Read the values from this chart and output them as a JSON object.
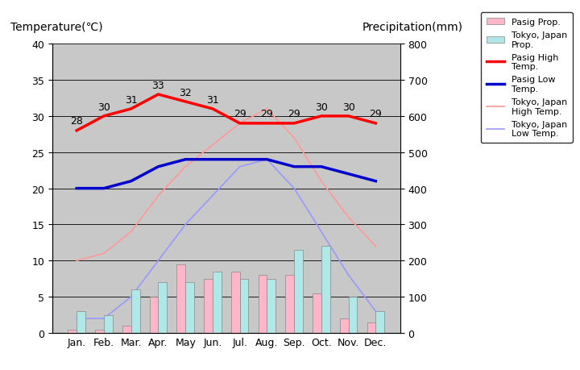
{
  "months": [
    "Jan.",
    "Feb.",
    "Mar.",
    "Apr.",
    "May",
    "Jun.",
    "Jul.",
    "Aug.",
    "Sep.",
    "Oct.",
    "Nov.",
    "Dec."
  ],
  "pasig_high": [
    28,
    30,
    31,
    33,
    32,
    31,
    29,
    29,
    29,
    30,
    30,
    29
  ],
  "pasig_low": [
    20,
    20,
    21,
    23,
    24,
    24,
    24,
    24,
    23,
    23,
    22,
    21
  ],
  "tokyo_high": [
    10,
    11,
    14,
    19,
    23,
    26,
    29,
    31,
    27,
    21,
    16,
    12
  ],
  "tokyo_low": [
    2,
    2,
    5,
    10,
    15,
    19,
    23,
    24,
    20,
    14,
    8,
    3
  ],
  "pasig_prcp_mm": [
    10,
    10,
    20,
    100,
    190,
    150,
    170,
    160,
    160,
    110,
    40,
    30
  ],
  "tokyo_prcp_mm": [
    60,
    50,
    120,
    140,
    140,
    170,
    150,
    150,
    230,
    240,
    100,
    60
  ],
  "pasig_high_labels": [
    "28",
    "30",
    "31",
    "33",
    "32",
    "31",
    "29",
    "29",
    "29",
    "30",
    "30",
    "29"
  ],
  "title_left": "Temperature(℃)",
  "title_right": "Precipitation(mm)",
  "bg_color": "#c8c8c8",
  "pasig_high_color": "#ff0000",
  "pasig_low_color": "#0000cc",
  "tokyo_high_color": "#ff9999",
  "tokyo_low_color": "#9999ff",
  "pasig_prcp_color": "#ffb6c8",
  "tokyo_prcp_color": "#b0e8e8",
  "ylim_temp": [
    0,
    40
  ],
  "ylim_prcp": [
    0,
    800
  ],
  "yticks_temp": [
    0,
    5,
    10,
    15,
    20,
    25,
    30,
    35,
    40
  ],
  "yticks_prcp": [
    0,
    100,
    200,
    300,
    400,
    500,
    600,
    700,
    800
  ]
}
